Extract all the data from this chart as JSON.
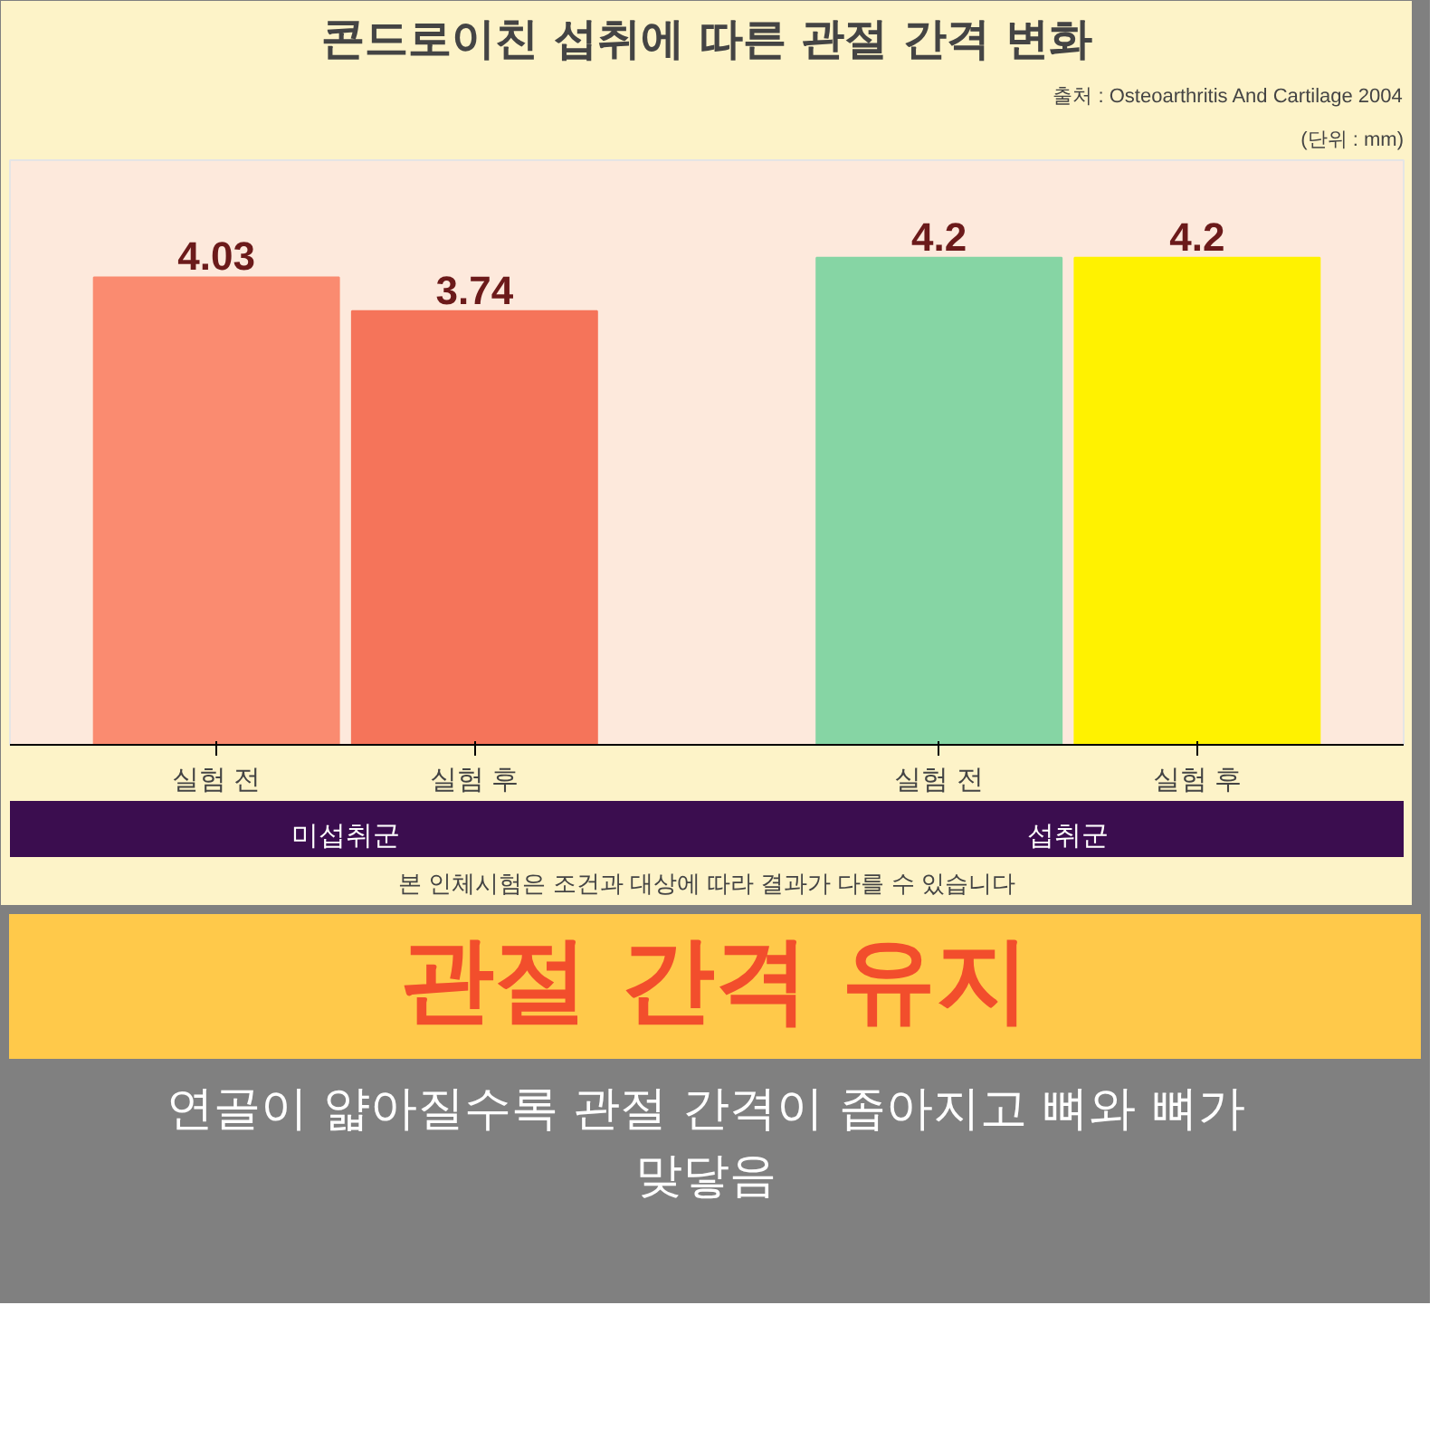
{
  "chart_data": {
    "type": "bar",
    "title": "콘드로이친 섭취에 따른 관절 간격 변화",
    "categories": [
      "실험 전",
      "실험 후",
      "실험 전",
      "실험 후"
    ],
    "values": [
      4.03,
      3.74,
      4.2,
      4.2
    ],
    "colors": [
      "#fa8b70",
      "#f5745a",
      "#86d5a4",
      "#fff200"
    ],
    "data_labels": true,
    "annotations": [
      "출처 : Osteoarthritis And Cartilage 2004",
      "(단위 : mm)",
      "미섭취군",
      "섭취군",
      "본 인체시험은 조건과 대상에 따라 결과가 다를 수 있습니다",
      "관절 간격 유지",
      "연골이 얇아질수록 관절 간격이 좁아지고 뼈와 뼈가 맞닿음"
    ]
  }
}
